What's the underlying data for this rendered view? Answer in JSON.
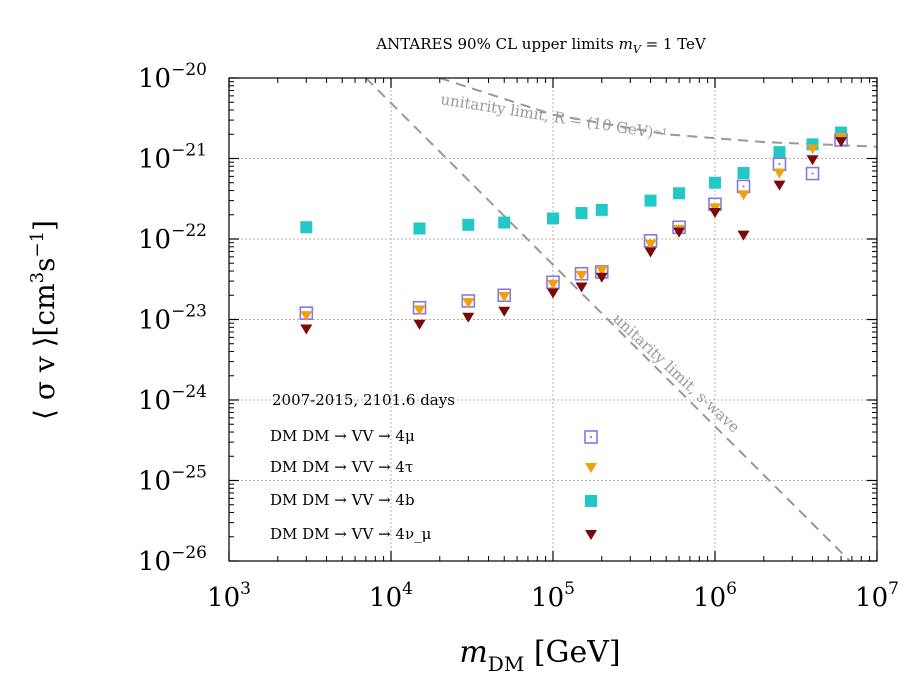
{
  "chart_data": {
    "type": "scatter",
    "title": "ANTARES 90% CL upper limits m_V = 1 TeV",
    "xlabel": "m_DM [GeV]",
    "ylabel": "⟨ σ v ⟩[cm³s⁻¹]",
    "x_scale": "log",
    "y_scale": "log",
    "xlim": [
      1000,
      10000000
    ],
    "ylim": [
      1e-26,
      1e-20
    ],
    "x_tick_labels": [
      {
        "value": 1000,
        "base": "10",
        "exp": "3"
      },
      {
        "value": 10000,
        "base": "10",
        "exp": "4"
      },
      {
        "value": 100000,
        "base": "10",
        "exp": "5"
      },
      {
        "value": 1000000,
        "base": "10",
        "exp": "6"
      },
      {
        "value": 10000000,
        "base": "10",
        "exp": "7"
      }
    ],
    "y_tick_labels": [
      {
        "value": 1e-20,
        "base": "10",
        "exp": "−20"
      },
      {
        "value": 1e-21,
        "base": "10",
        "exp": "−21"
      },
      {
        "value": 1e-22,
        "base": "10",
        "exp": "−22"
      },
      {
        "value": 1e-23,
        "base": "10",
        "exp": "−23"
      },
      {
        "value": 1e-24,
        "base": "10",
        "exp": "−24"
      },
      {
        "value": 1e-25,
        "base": "10",
        "exp": "−25"
      },
      {
        "value": 1e-26,
        "base": "10",
        "exp": "−26"
      }
    ],
    "grid": true,
    "legend_title": "2007-2015, 2101.6 days",
    "legend_position": "bottom-left",
    "x": [
      3000,
      15000,
      30000,
      50000,
      100000,
      150000,
      200000,
      400000,
      600000,
      1000000,
      1500000,
      2500000,
      4000000,
      6000000
    ],
    "series": [
      {
        "name": "DM DM → VV → 4μ",
        "marker": "open-square",
        "color": "#8878e0",
        "values": [
          1.2e-23,
          1.4e-23,
          1.7e-23,
          2e-23,
          2.9e-23,
          3.7e-23,
          3.9e-23,
          9.5e-23,
          1.4e-22,
          2.7e-22,
          4.5e-22,
          8.5e-22,
          6.5e-22,
          1.7e-21
        ]
      },
      {
        "name": "DM DM → VV → 4τ",
        "marker": "down-triangle",
        "color": "#f0a010",
        "values": [
          1.1e-23,
          1.3e-23,
          1.6e-23,
          1.9e-23,
          2.7e-23,
          3.5e-23,
          4e-23,
          8.5e-23,
          1.3e-22,
          2.4e-22,
          3.5e-22,
          6.5e-22,
          1.3e-21,
          1.8e-21
        ]
      },
      {
        "name": "DM DM → VV → 4b",
        "marker": "filled-square",
        "color": "#22c8c8",
        "values": [
          1.4e-22,
          1.35e-22,
          1.5e-22,
          1.6e-22,
          1.8e-22,
          2.1e-22,
          2.3e-22,
          3e-22,
          3.7e-22,
          5e-22,
          6.6e-22,
          1.2e-21,
          1.5e-21,
          2.1e-21
        ]
      },
      {
        "name": "DM DM → VV → 4ν_μ",
        "marker": "down-triangle",
        "color": "#7a0a0a",
        "values": [
          7.5e-24,
          8.6e-24,
          1.05e-23,
          1.25e-23,
          2.1e-23,
          2.5e-23,
          3.3e-23,
          6.8e-23,
          1.2e-22,
          2.1e-22,
          1.1e-22,
          4.6e-22,
          9.5e-22,
          1.6e-21
        ]
      }
    ],
    "reference_lines": [
      {
        "label": "unitarity limit, R = (10 GeV)⁻¹",
        "style": "dashed",
        "color": "#999999",
        "points": [
          [
            20000,
            1e-20
          ],
          [
            100000,
            3.5e-21
          ],
          [
            500000,
            2e-21
          ],
          [
            2000000,
            1.6e-21
          ],
          [
            10000000,
            1.4e-21
          ]
        ]
      },
      {
        "label": "unitarity limit, s-wave",
        "style": "dashed",
        "color": "#999999",
        "points": [
          [
            7000,
            1e-20
          ],
          [
            6800000,
            1e-26
          ]
        ]
      }
    ]
  }
}
